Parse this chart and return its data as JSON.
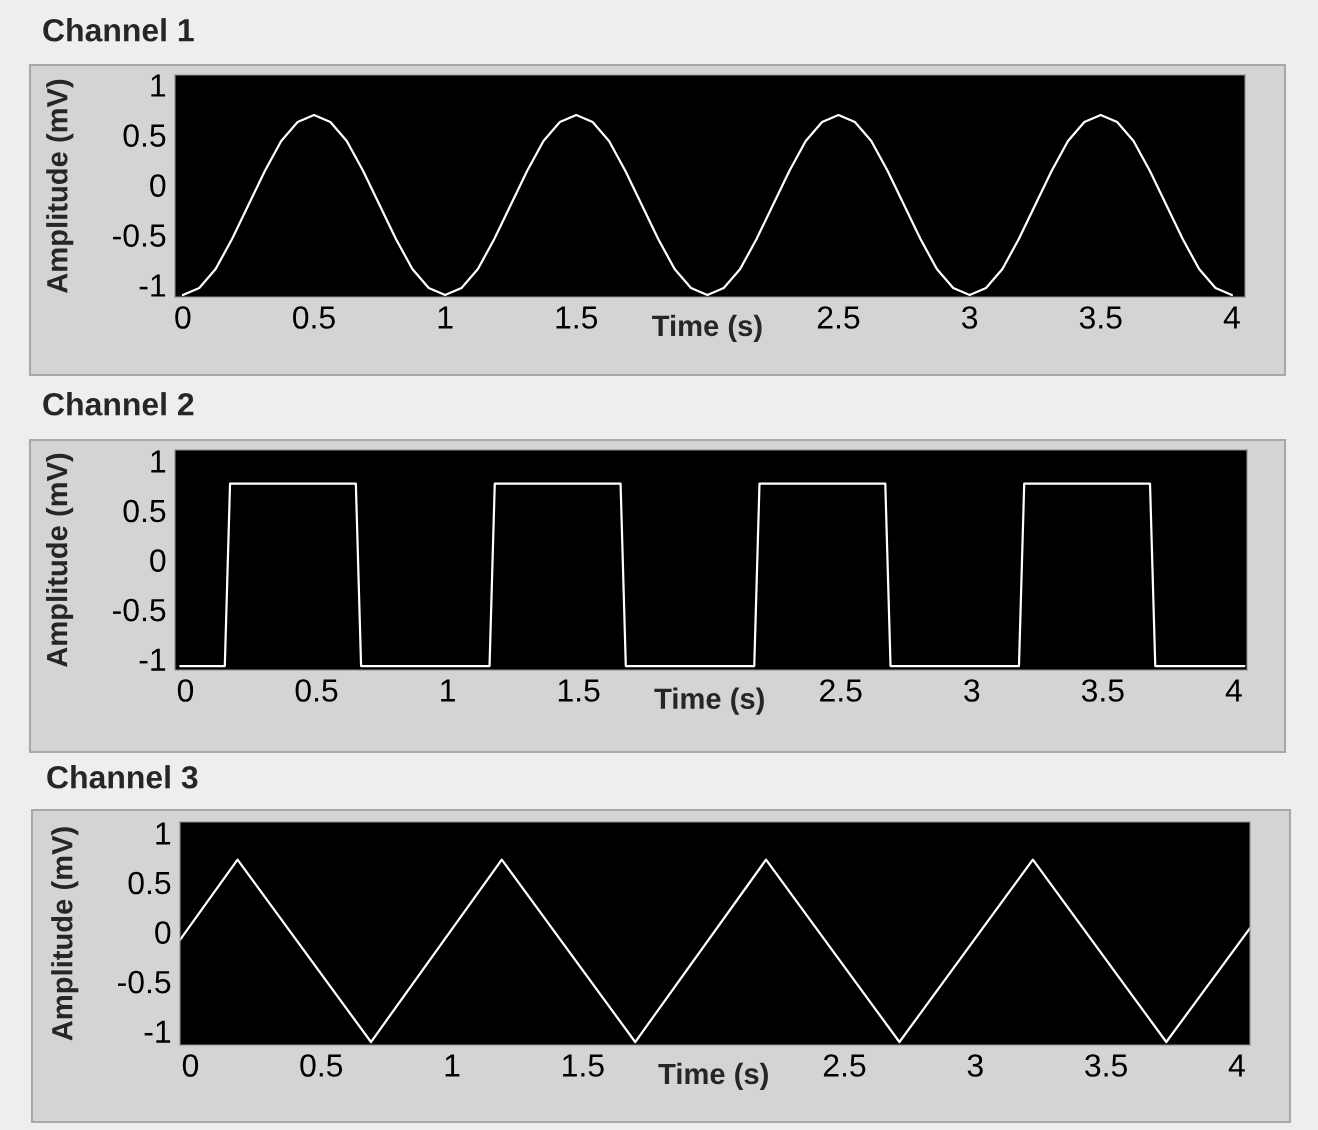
{
  "chart_data": [
    {
      "type": "line",
      "title": "Channel 1",
      "xlabel": "Time (s)",
      "ylabel": "Amplitude (mV)",
      "grid": false,
      "legend": false,
      "xlim": [
        -0.03,
        4.05
      ],
      "ylim": [
        -1.12,
        1.1
      ],
      "xticks": [
        0,
        0.5,
        1,
        1.5,
        2.5,
        3,
        3.5,
        4
      ],
      "yticks": [
        -1,
        -0.5,
        0,
        0.5,
        1
      ],
      "series": [
        {
          "color": "#ffffff",
          "x": [
            0,
            0.0625,
            0.125,
            0.1875,
            0.25,
            0.3125,
            0.375,
            0.4375,
            0.5,
            0.5625,
            0.625,
            0.6875,
            0.75,
            0.8125,
            0.875,
            0.9375,
            1,
            1.0625,
            1.125,
            1.1875,
            1.25,
            1.3125,
            1.375,
            1.4375,
            1.5,
            1.5625,
            1.625,
            1.6875,
            1.75,
            1.8125,
            1.875,
            1.9375,
            2,
            2.0625,
            2.125,
            2.1875,
            2.25,
            2.3125,
            2.375,
            2.4375,
            2.5,
            2.5625,
            2.625,
            2.6875,
            2.75,
            2.8125,
            2.875,
            2.9375,
            3,
            3.0625,
            3.125,
            3.1875,
            3.25,
            3.3125,
            3.375,
            3.4375,
            3.5,
            3.5625,
            3.625,
            3.6875,
            3.75,
            3.8125,
            3.875,
            3.9375,
            4
          ],
          "values": [
            -1.1,
            -1.03,
            -0.84,
            -0.54,
            -0.2,
            0.14,
            0.44,
            0.63,
            0.7,
            0.63,
            0.44,
            0.14,
            -0.2,
            -0.54,
            -0.84,
            -1.03,
            -1.1,
            -1.03,
            -0.84,
            -0.54,
            -0.2,
            0.14,
            0.44,
            0.63,
            0.7,
            0.63,
            0.44,
            0.14,
            -0.2,
            -0.54,
            -0.84,
            -1.03,
            -1.1,
            -1.03,
            -0.84,
            -0.54,
            -0.2,
            0.14,
            0.44,
            0.63,
            0.7,
            0.63,
            0.44,
            0.14,
            -0.2,
            -0.54,
            -0.84,
            -1.03,
            -1.1,
            -1.03,
            -0.84,
            -0.54,
            -0.2,
            0.14,
            0.44,
            0.63,
            0.7,
            0.63,
            0.44,
            0.14,
            -0.2,
            -0.54,
            -0.84,
            -1.03,
            -1.1
          ]
        }
      ]
    },
    {
      "type": "line",
      "title": "Channel 2",
      "xlabel": "Time (s)",
      "ylabel": "Amplitude (mV)",
      "grid": false,
      "legend": false,
      "xlim": [
        -0.04,
        4.05
      ],
      "ylim": [
        -1.11,
        1.11
      ],
      "xticks": [
        0,
        0.5,
        1,
        1.5,
        2.5,
        3,
        3.5,
        4
      ],
      "yticks": [
        -1,
        -0.5,
        0,
        0.5,
        1
      ],
      "series": [
        {
          "color": "#ffffff",
          "x": [
            -0.02,
            0.15,
            0.17,
            0.65,
            0.67,
            1.16,
            1.18,
            1.66,
            1.68,
            2.17,
            2.19,
            2.67,
            2.69,
            3.18,
            3.2,
            3.68,
            3.7,
            4.04
          ],
          "values": [
            -1.07,
            -1.07,
            0.77,
            0.77,
            -1.07,
            -1.07,
            0.77,
            0.77,
            -1.07,
            -1.07,
            0.77,
            0.77,
            -1.07,
            -1.07,
            0.77,
            0.77,
            -1.07,
            -1.07
          ]
        }
      ]
    },
    {
      "type": "line",
      "title": "Channel 3",
      "xlabel": "Time (s)",
      "ylabel": "Amplitude (mV)",
      "grid": false,
      "legend": false,
      "xlim": [
        -0.04,
        4.05
      ],
      "ylim": [
        -1.14,
        1.11
      ],
      "xticks": [
        0,
        0.5,
        1,
        1.5,
        2.5,
        3,
        3.5,
        4
      ],
      "yticks": [
        -1,
        -0.5,
        0,
        0.5,
        1
      ],
      "series": [
        {
          "color": "#ffffff",
          "x": [
            -0.04,
            0.18,
            0.69,
            1.19,
            1.7,
            2.2,
            2.71,
            3.22,
            3.73,
            4.05
          ],
          "values": [
            -0.08,
            0.73,
            -1.11,
            0.73,
            -1.11,
            0.73,
            -1.11,
            0.73,
            -1.11,
            0.04
          ]
        }
      ]
    }
  ]
}
